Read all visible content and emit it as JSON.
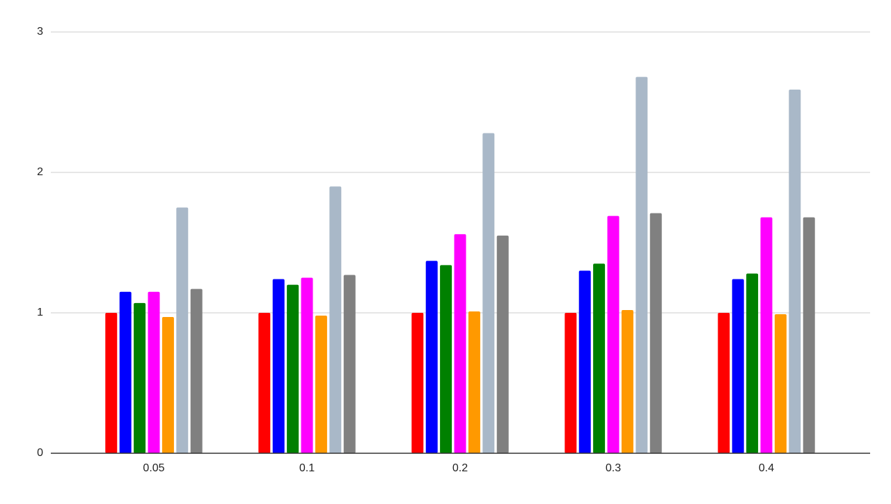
{
  "chart_data": {
    "type": "bar",
    "categories": [
      "0.05",
      "0.1",
      "0.2",
      "0.3",
      "0.4"
    ],
    "series": [
      {
        "color": "#ff0000",
        "values": [
          1,
          1,
          1,
          1,
          1
        ]
      },
      {
        "color": "#0000ff",
        "values": [
          1.15,
          1.24,
          1.37,
          1.3,
          1.24
        ]
      },
      {
        "color": "#008000",
        "values": [
          1.07,
          1.2,
          1.34,
          1.35,
          1.28
        ]
      },
      {
        "color": "#ff00ff",
        "values": [
          1.15,
          1.25,
          1.56,
          1.69,
          1.68
        ]
      },
      {
        "color": "#ff9900",
        "values": [
          0.97,
          0.98,
          1.01,
          1.02,
          0.99
        ]
      },
      {
        "color": "#a9b8c8",
        "values": [
          1.75,
          1.9,
          2.28,
          2.68,
          2.59
        ]
      },
      {
        "color": "#808080",
        "values": [
          1.17,
          1.27,
          1.55,
          1.71,
          1.68
        ]
      }
    ],
    "ylim": [
      0,
      3
    ],
    "yticks": [
      0,
      1,
      2,
      3
    ],
    "grid": true
  }
}
